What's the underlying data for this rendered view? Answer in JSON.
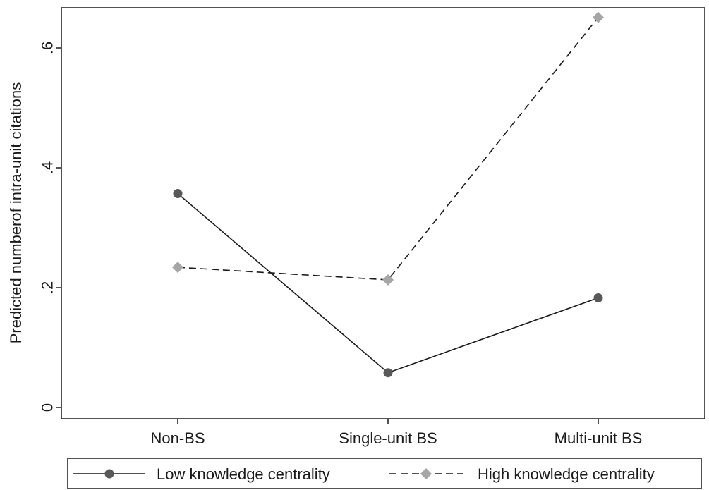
{
  "chart_data": {
    "type": "line",
    "title": "",
    "xlabel": "",
    "ylabel": "Predicted numberof intra-unit citations",
    "categories": [
      "Non-BS",
      "Single-unit BS",
      "Multi-unit BS"
    ],
    "y_ticks": [
      0,
      0.2,
      0.4,
      0.6
    ],
    "y_tick_labels": [
      "0",
      ".2",
      ".4",
      ".6"
    ],
    "ylim": [
      -0.02,
      0.67
    ],
    "grid": false,
    "legend_position": "bottom",
    "series": [
      {
        "name": "Low knowledge centrality",
        "values": [
          0.357,
          0.058,
          0.183
        ],
        "line_style": "solid",
        "marker": "circle",
        "color": "#595959"
      },
      {
        "name": "High knowledge centrality",
        "values": [
          0.234,
          0.213,
          0.651
        ],
        "line_style": "dashed",
        "marker": "diamond",
        "color": "#a6a6a6"
      }
    ]
  }
}
